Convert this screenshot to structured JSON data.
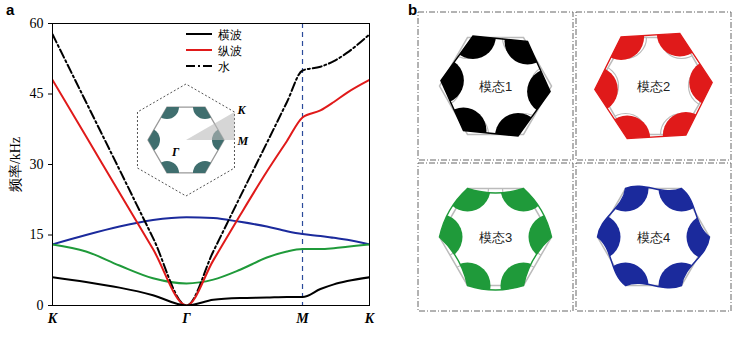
{
  "chart_data": {
    "type": "line",
    "panel_label": "a",
    "y_label": "频率/kHz",
    "x": [
      0,
      0.25,
      0.5,
      0.75,
      1,
      1.2,
      1.4,
      1.6,
      1.75,
      1.866,
      2.0,
      2.1,
      2.2,
      2.366
    ],
    "xlim": [
      0,
      2.366
    ],
    "xticks": [
      {
        "value": 0,
        "label": "K"
      },
      {
        "value": 1,
        "label": "Γ"
      },
      {
        "value": 1.866,
        "label": "M"
      },
      {
        "value": 2.366,
        "label": "K"
      }
    ],
    "ylim": [
      0,
      60
    ],
    "yticks": [
      0,
      15,
      30,
      45,
      60
    ],
    "legend": "top-right",
    "series": [
      {
        "name": "横波",
        "color": "#000000",
        "line_style": "solid",
        "values": [
          6,
          5,
          3.8,
          2.2,
          0,
          1.2,
          1.6,
          1.7,
          1.8,
          1.8,
          3.5,
          4.5,
          5.2,
          6
        ]
      },
      {
        "name": "纵波",
        "color": "#e01a1a",
        "line_style": "solid",
        "values": [
          48,
          36,
          24,
          12,
          0,
          9.6,
          19.2,
          28.5,
          35,
          40,
          41.5,
          43.3,
          45.3,
          48
        ]
      },
      {
        "name": "水",
        "color": "#000000",
        "line_style": "dashdot",
        "values": [
          57.7,
          43.3,
          28.9,
          14.4,
          0,
          11.5,
          23.1,
          34.6,
          43.3,
          50,
          50.8,
          52,
          53.8,
          57.7
        ]
      },
      {
        "color": "#1f9a3a",
        "line_style": "solid",
        "values": [
          13,
          11.5,
          8.5,
          5.8,
          4.7,
          5.5,
          7.6,
          10.2,
          11.5,
          12,
          12,
          12.2,
          12.5,
          13
        ]
      },
      {
        "color": "#1b2a9c",
        "line_style": "solid",
        "values": [
          13,
          15,
          16.8,
          18.2,
          18.8,
          18.6,
          17.8,
          16.8,
          15.8,
          15.2,
          14.8,
          14.4,
          14,
          13
        ]
      }
    ],
    "annotations": [
      {
        "type": "vline",
        "x": 1.866,
        "color": "#2b4a9b",
        "line_style": "dashed"
      }
    ],
    "inset": {
      "labels": {
        "K": "K",
        "M": "M",
        "Γ": "Γ"
      }
    }
  },
  "panel_b": {
    "panel_label": "b",
    "modes": [
      {
        "label": "模态1",
        "color": "#000000"
      },
      {
        "label": "模态2",
        "color": "#e01a1a"
      },
      {
        "label": "模态3",
        "color": "#1f9a3a"
      },
      {
        "label": "模态4",
        "color": "#1b2a9c"
      }
    ]
  }
}
